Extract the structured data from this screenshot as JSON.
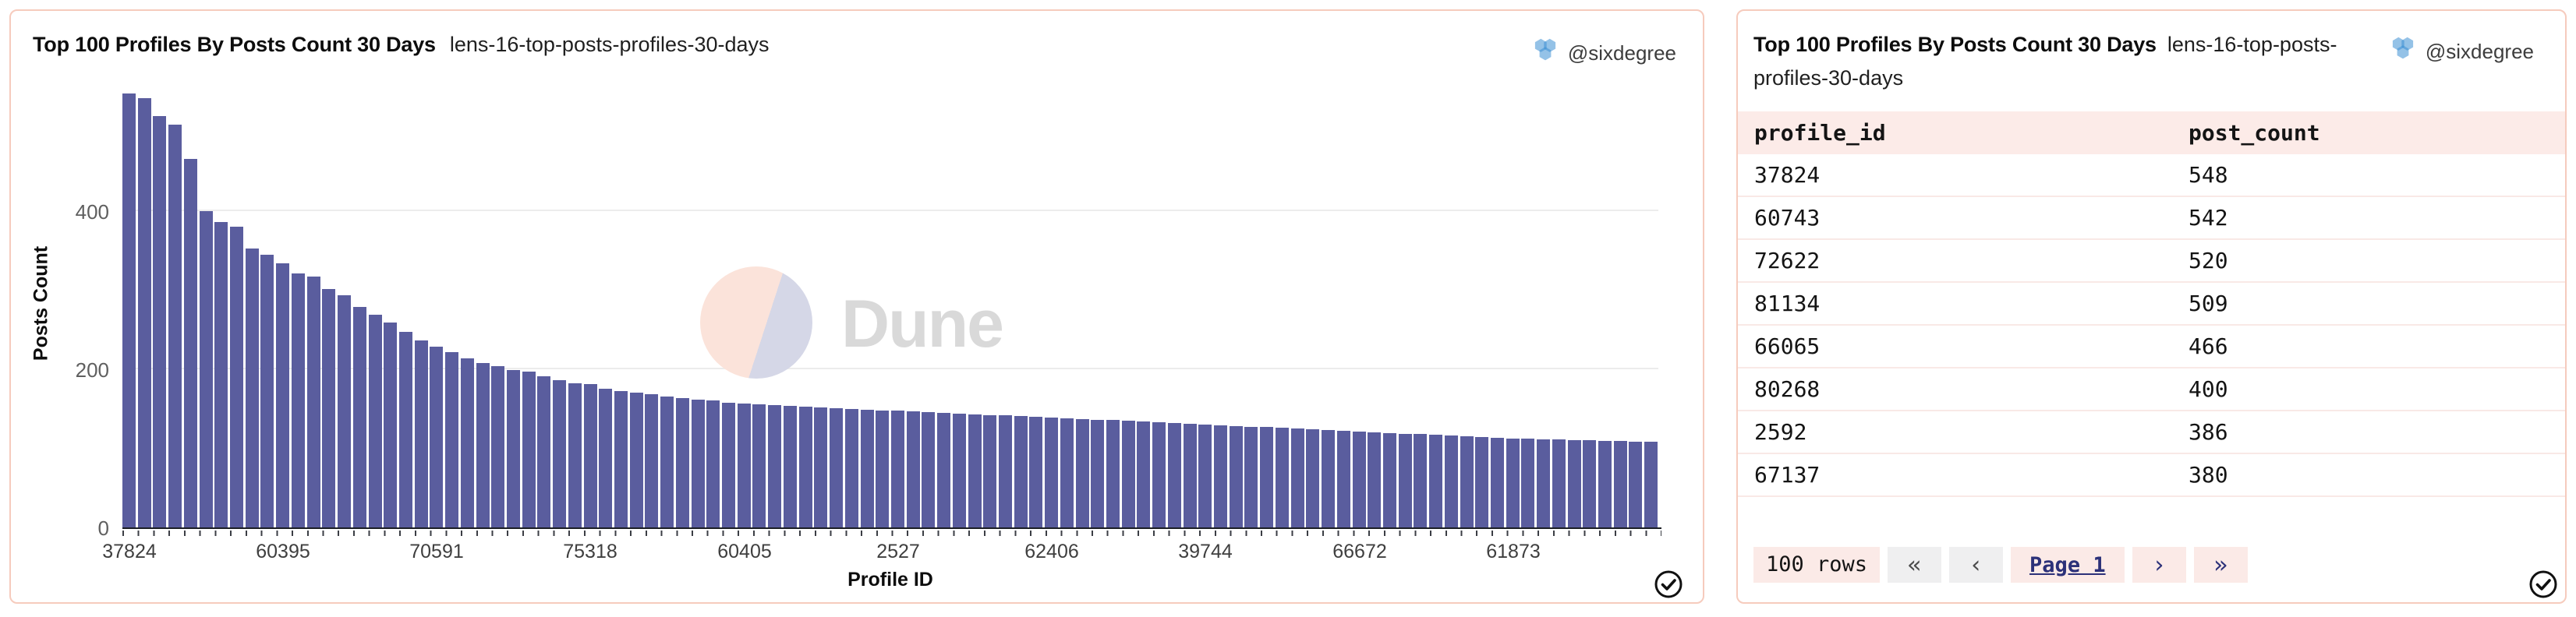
{
  "left_panel": {
    "title": "Top 100 Profiles By Posts Count 30 Days",
    "subtitle": "lens-16-top-posts-profiles-30-days",
    "author": "@sixdegree",
    "watermark": "Dune"
  },
  "chart_data": {
    "type": "bar",
    "title": "Top 100 Profiles By Posts Count 30 Days",
    "xlabel": "Profile ID",
    "ylabel": "Posts Count",
    "yticks": [
      0,
      200,
      400
    ],
    "ylim": [
      0,
      573
    ],
    "grid": "horizontal",
    "bar_color": "#5a5d9e",
    "x_tick_interval": 10,
    "x_tick_labels": [
      "37824",
      "60395",
      "70591",
      "75318",
      "60405",
      "2527",
      "62406",
      "39744",
      "66672",
      "61873"
    ],
    "values": [
      548,
      542,
      520,
      509,
      466,
      400,
      386,
      380,
      352,
      345,
      334,
      321,
      317,
      301,
      293,
      279,
      269,
      259,
      247,
      236,
      228,
      222,
      214,
      208,
      204,
      199,
      197,
      191,
      186,
      182,
      181,
      175,
      172,
      170,
      168,
      165,
      163,
      161,
      160,
      158,
      157,
      156,
      155,
      154,
      153,
      152,
      151,
      150,
      149,
      148,
      148,
      147,
      146,
      145,
      144,
      143,
      142,
      142,
      141,
      140,
      139,
      138,
      137,
      136,
      136,
      135,
      134,
      133,
      132,
      131,
      130,
      129,
      128,
      127,
      127,
      126,
      125,
      124,
      123,
      122,
      121,
      120,
      119,
      118,
      118,
      117,
      116,
      115,
      114,
      113,
      112,
      112,
      111,
      111,
      110,
      110,
      109,
      109,
      108,
      108
    ]
  },
  "right_panel": {
    "title": "Top 100 Profiles By Posts Count 30 Days",
    "subtitle": "lens-16-top-posts-profiles-30-days",
    "author": "@sixdegree",
    "table": {
      "columns": [
        "profile_id",
        "post_count"
      ],
      "rows": [
        [
          "37824",
          "548"
        ],
        [
          "60743",
          "542"
        ],
        [
          "72622",
          "520"
        ],
        [
          "81134",
          "509"
        ],
        [
          "66065",
          "466"
        ],
        [
          "80268",
          "400"
        ],
        [
          "2592",
          "386"
        ],
        [
          "67137",
          "380"
        ]
      ]
    },
    "footer": {
      "rows_label": "100 rows",
      "first_label": "«",
      "prev_label": "‹",
      "page_label": "Page 1",
      "next_label": "›",
      "last_label": "»"
    }
  },
  "colors": {
    "bar": "#5a5d9e",
    "card_border": "#f6cbbd",
    "table_header_bg": "#fcebe8",
    "row_divider": "#f9e9e6",
    "pink_button_bg": "#fbeae7",
    "gray_button_bg": "#efeff0",
    "navy": "#2c3179",
    "watermark_pink": "#fbe3da",
    "watermark_lavender": "#d5d7e7"
  }
}
